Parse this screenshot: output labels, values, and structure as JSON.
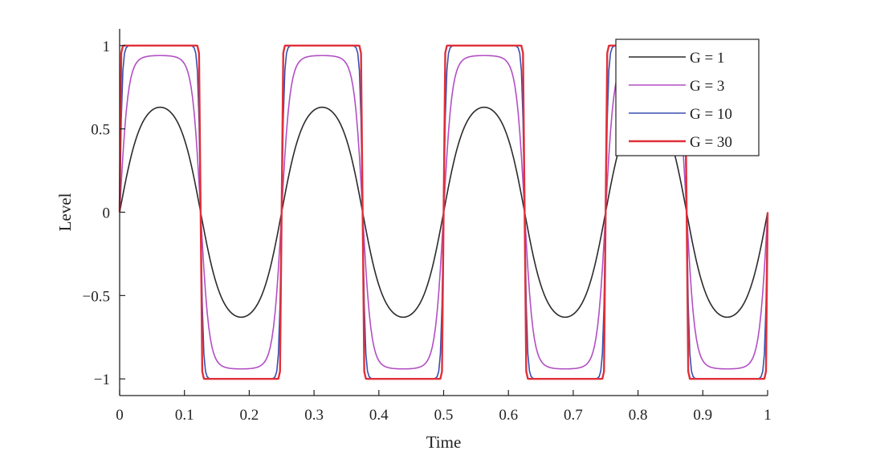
{
  "chart_data": {
    "type": "line",
    "title": "",
    "xlabel": "Time",
    "ylabel": "Level",
    "xlim": [
      0,
      1
    ],
    "ylim": [
      -1.1,
      1.1
    ],
    "x_ticks": [
      0,
      0.1,
      0.2,
      0.3,
      0.4,
      0.5,
      0.6,
      0.7,
      0.8,
      0.9,
      1
    ],
    "x_tick_labels": [
      "0",
      "0.1",
      "0.2",
      "0.3",
      "0.4",
      "0.5",
      "0.6",
      "0.7",
      "0.8",
      "0.9",
      "1"
    ],
    "y_ticks": [
      1,
      0.5,
      0,
      -0.5,
      -1
    ],
    "y_tick_labels": [
      "1",
      "0.5",
      "0",
      "−0.5",
      "−1"
    ],
    "grid": false,
    "legend_position": "top-right",
    "signal": {
      "function": "tanh(G*sin(2*pi*f*t)) / tanh(G)*peak",
      "frequency": 4,
      "samples": 400
    },
    "series": [
      {
        "name": "G = 1",
        "gain": 1,
        "peak": 0.63,
        "color": "#2b2b2b"
      },
      {
        "name": "G = 3",
        "gain": 3,
        "peak": 0.94,
        "color": "#b24fc4"
      },
      {
        "name": "G = 10",
        "gain": 10,
        "peak": 1.0,
        "color": "#3a4fb0"
      },
      {
        "name": "G = 30",
        "gain": 30,
        "peak": 1.0,
        "color": "#e0303a"
      }
    ]
  }
}
